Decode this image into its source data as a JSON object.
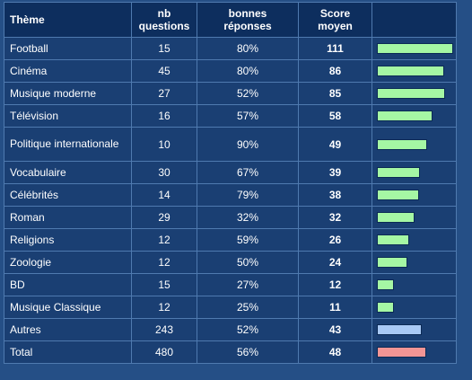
{
  "headers": {
    "theme": "Thème",
    "questions": [
      "nb",
      "questions"
    ],
    "correct": [
      "bonnes",
      "réponses"
    ],
    "score": [
      "Score",
      "moyen"
    ]
  },
  "rows": [
    {
      "theme": "Football",
      "questions": "15",
      "correct": "80%",
      "score": "111",
      "bar": 1.0,
      "color": "green"
    },
    {
      "theme": "Cinéma",
      "questions": "45",
      "correct": "80%",
      "score": "86",
      "bar": 0.88,
      "color": "green"
    },
    {
      "theme": "Musique moderne",
      "questions": "27",
      "correct": "52%",
      "score": "85",
      "bar": 0.89,
      "color": "green"
    },
    {
      "theme": "Télévision",
      "questions": "16",
      "correct": "57%",
      "score": "58",
      "bar": 0.72,
      "color": "green"
    },
    {
      "theme": "Politique internationale",
      "questions": "10",
      "correct": "90%",
      "score": "49",
      "bar": 0.65,
      "color": "green",
      "tall": true
    },
    {
      "theme": "Vocabulaire",
      "questions": "30",
      "correct": "67%",
      "score": "39",
      "bar": 0.55,
      "color": "green"
    },
    {
      "theme": "Célébrités",
      "questions": "14",
      "correct": "79%",
      "score": "38",
      "bar": 0.54,
      "color": "green"
    },
    {
      "theme": "Roman",
      "questions": "29",
      "correct": "32%",
      "score": "32",
      "bar": 0.48,
      "color": "green"
    },
    {
      "theme": "Religions",
      "questions": "12",
      "correct": "59%",
      "score": "26",
      "bar": 0.41,
      "color": "green"
    },
    {
      "theme": "Zoologie",
      "questions": "12",
      "correct": "50%",
      "score": "24",
      "bar": 0.39,
      "color": "green"
    },
    {
      "theme": "BD",
      "questions": "15",
      "correct": "27%",
      "score": "12",
      "bar": 0.21,
      "color": "green"
    },
    {
      "theme": "Musique Classique",
      "questions": "12",
      "correct": "25%",
      "score": "11",
      "bar": 0.2,
      "color": "green"
    },
    {
      "theme": "Autres",
      "questions": "243",
      "correct": "52%",
      "score": "43",
      "bar": 0.58,
      "color": "blue"
    },
    {
      "theme": "Total",
      "questions": "480",
      "correct": "56%",
      "score": "48",
      "bar": 0.64,
      "color": "red"
    }
  ]
}
